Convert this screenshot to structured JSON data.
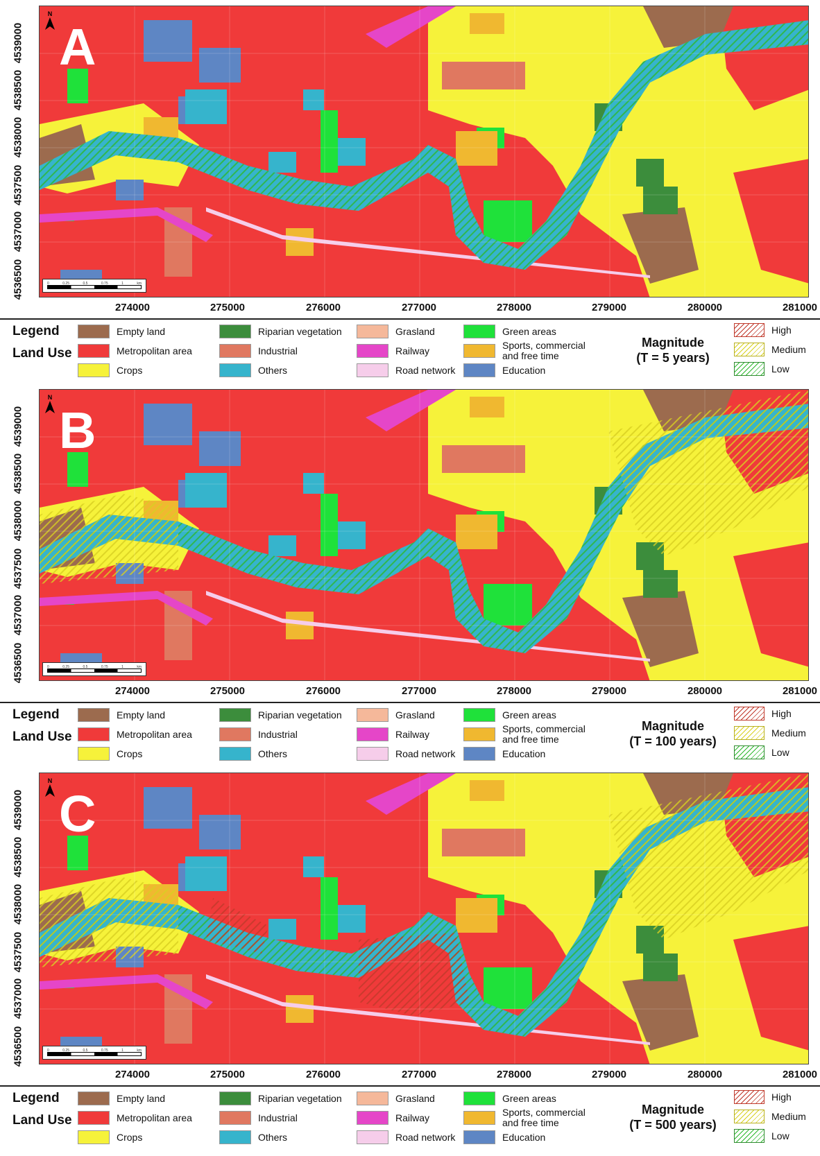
{
  "map_panels": [
    {
      "letter": "A",
      "magnitude_title": "Magnitude",
      "magnitude_period": "(T = 5 years)",
      "flood_extent": "small",
      "scale_ticks": [
        "0",
        "0.25",
        "0.5",
        "0.75",
        "1"
      ],
      "scale_unit": "km"
    },
    {
      "letter": "B",
      "magnitude_title": "Magnitude",
      "magnitude_period": "(T = 100 years)",
      "flood_extent": "medium",
      "scale_ticks": [
        "0",
        "0.25",
        "0.5",
        "0.75",
        "1"
      ],
      "scale_unit": "km"
    },
    {
      "letter": "C",
      "magnitude_title": "Magnitude",
      "magnitude_period": "(T = 500 years)",
      "flood_extent": "large",
      "scale_ticks": [
        "0",
        "0.25",
        "0.5",
        "0.75",
        "1"
      ],
      "scale_unit": "km"
    }
  ],
  "north_label": "N",
  "y_ticks": [
    "4536500",
    "4537000",
    "4537500",
    "4538000",
    "4538500",
    "4539000"
  ],
  "x_ticks": [
    "274000",
    "275000",
    "276000",
    "277000",
    "278000",
    "279000",
    "280000",
    "281000"
  ],
  "legend": {
    "title": "Legend",
    "subtitle": "Land Use",
    "items": [
      {
        "label": "Empty land",
        "color": "#9c6b4e"
      },
      {
        "label": "Metropolitan area",
        "color": "#f03a3a"
      },
      {
        "label": "Crops",
        "color": "#f6f23a"
      },
      {
        "label": "Riparian vegetation",
        "color": "#3c8d3c"
      },
      {
        "label": "Industrial",
        "color": "#e07860"
      },
      {
        "label": "Others",
        "color": "#36b4cc"
      },
      {
        "label": "Grasland",
        "color": "#f5b89a"
      },
      {
        "label": "Railway",
        "color": "#e546c8"
      },
      {
        "label": "Road network",
        "color": "#f6cdea"
      },
      {
        "label": "Green areas",
        "color": "#1fe13a"
      },
      {
        "label": "Sports, commercial and free time",
        "color": "#f0b830"
      },
      {
        "label": "Education",
        "color": "#5e86c4"
      }
    ],
    "magnitude_levels": [
      {
        "label": "High",
        "color": "#c0392b"
      },
      {
        "label": "Medium",
        "color": "#d8d020"
      },
      {
        "label": "Low",
        "color": "#2eb82e"
      }
    ]
  }
}
